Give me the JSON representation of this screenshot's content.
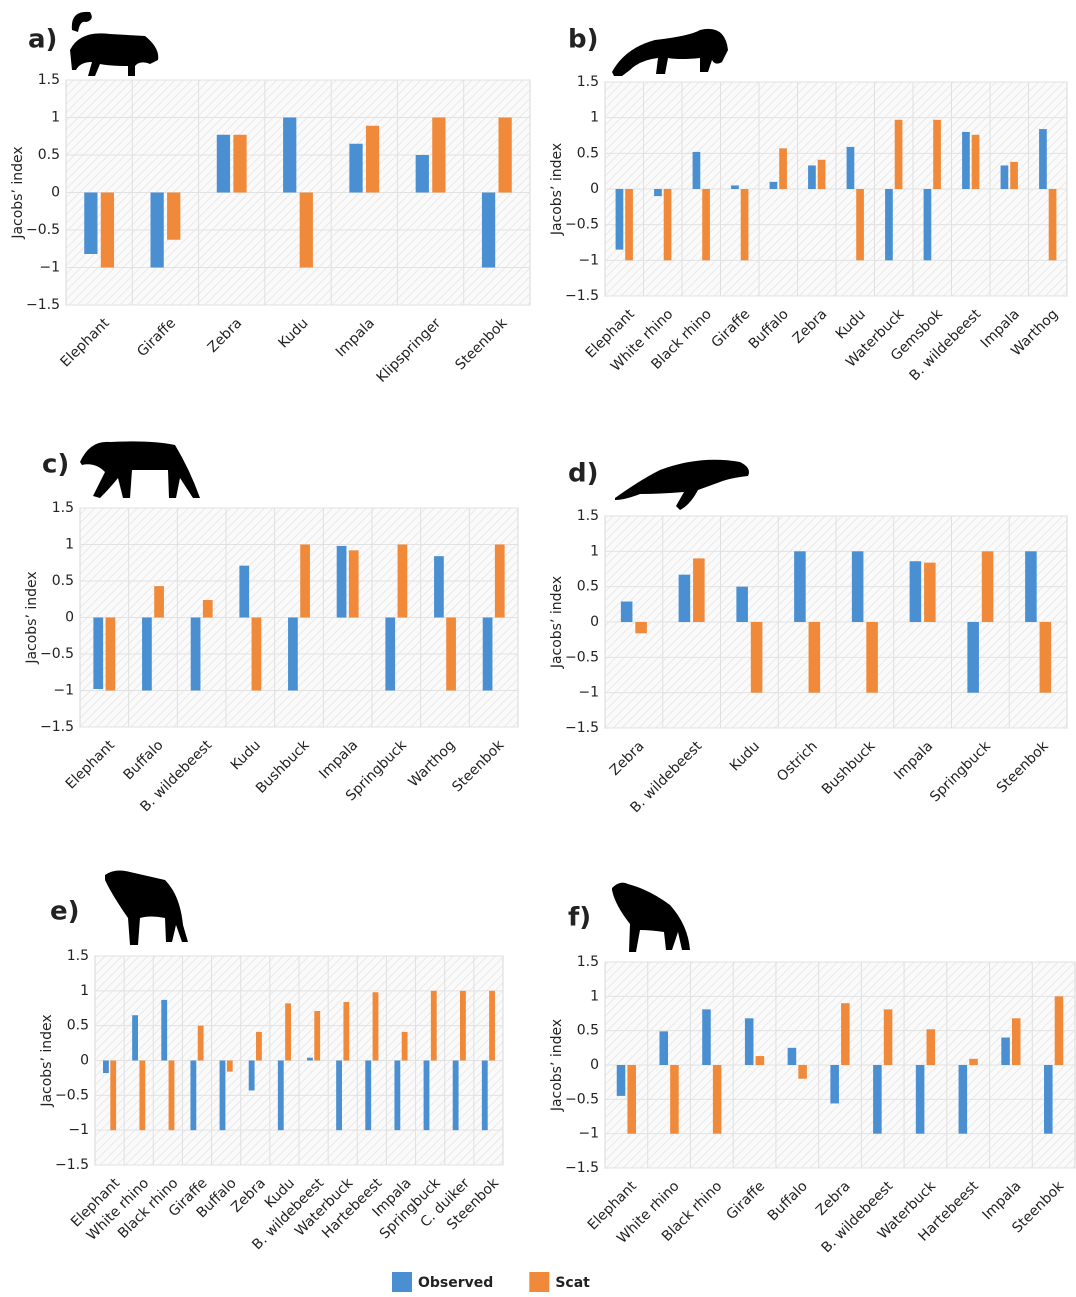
{
  "chart_data": [
    {
      "type": "bar",
      "title": "a)",
      "y_label": "Jacobs’ index",
      "categories": [
        "Elephant",
        "Giraffe",
        "Zebra",
        "Kudu",
        "Impala",
        "Klipspringer",
        "Steenbok"
      ],
      "series": [
        {
          "name": "Observed",
          "color": "#4a8fd2",
          "values": [
            -0.82,
            -1,
            0.77,
            1,
            0.65,
            0.5,
            -1
          ]
        },
        {
          "name": "Scat",
          "color": "#f08a3a",
          "values": [
            -1,
            -0.63,
            0.77,
            -1,
            0.89,
            1,
            1
          ]
        }
      ],
      "ylim": [
        -1.5,
        1.5
      ],
      "yticks": [
        1.5,
        1,
        0.5,
        0,
        {
          "value": -0.5,
          "label": "−0.5"
        },
        {
          "value": -1,
          "label": "−1"
        },
        {
          "value": -1.5,
          "label": "−1.5"
        }
      ],
      "grid": true
    },
    {
      "type": "bar",
      "title": "b)",
      "y_label": "Jacobs’ index",
      "categories": [
        "Elephant",
        "White rhino",
        "Black rhino",
        "Giraffe",
        "Buffalo",
        "Zebra",
        "Kudu",
        "Waterbuck",
        "Gemsbok",
        "B. wildebeest",
        "Impala",
        "Warthog"
      ],
      "series": [
        {
          "name": "Observed",
          "color": "#4a8fd2",
          "values": [
            -0.85,
            -0.1,
            0.52,
            0.05,
            0.1,
            0.33,
            0.59,
            -1,
            -1,
            0.8,
            0.33,
            0.84
          ]
        },
        {
          "name": "Scat",
          "color": "#f08a3a",
          "values": [
            -1,
            -1,
            -1,
            -1,
            0.57,
            0.41,
            -1,
            0.97,
            0.97,
            0.76,
            0.38,
            -1
          ]
        }
      ],
      "ylim": [
        -1.5,
        1.5
      ],
      "yticks": [
        1.5,
        1,
        0.5,
        0,
        {
          "value": -0.5,
          "label": "−0.5"
        },
        {
          "value": -1,
          "label": "−1"
        },
        {
          "value": -1.5,
          "label": "−1.5"
        }
      ],
      "grid": true
    },
    {
      "type": "bar",
      "title": "c)",
      "y_label": "Jacobs’ index",
      "categories": [
        "Elephant",
        "Buffalo",
        "B. wildebeest",
        "Kudu",
        "Bushbuck",
        "Impala",
        "Springbuck",
        "Warthog",
        "Steenbok"
      ],
      "series": [
        {
          "name": "Observed",
          "color": "#4a8fd2",
          "values": [
            -0.98,
            -1,
            -1,
            0.71,
            -1,
            0.98,
            -1,
            0.84,
            -1
          ]
        },
        {
          "name": "Scat",
          "color": "#f08a3a",
          "values": [
            -1,
            0.43,
            0.24,
            -1,
            1,
            0.92,
            1,
            -1,
            1
          ]
        }
      ],
      "ylim": [
        -1.5,
        1.5
      ],
      "yticks": [
        1.5,
        1,
        0.5,
        0,
        {
          "value": -0.5,
          "label": "−0.5"
        },
        {
          "value": -1,
          "label": "−1"
        },
        {
          "value": -1.5,
          "label": "−1.5"
        }
      ],
      "grid": true
    },
    {
      "type": "bar",
      "title": "d)",
      "y_label": "Jacobs’ index",
      "categories": [
        "Zebra",
        "B. wildebeest",
        "Kudu",
        "Ostrich",
        "Bushbuck",
        "Impala",
        "Springbuck",
        "Steenbok"
      ],
      "series": [
        {
          "name": "Observed",
          "color": "#4a8fd2",
          "values": [
            0.29,
            0.67,
            0.5,
            1,
            1,
            0.86,
            -1,
            1
          ]
        },
        {
          "name": "Scat",
          "color": "#f08a3a",
          "values": [
            -0.16,
            0.9,
            -1,
            -1,
            -1,
            0.84,
            1,
            -1
          ]
        }
      ],
      "ylim": [
        -1.5,
        1.5
      ],
      "yticks": [
        1.5,
        1,
        0.5,
        0,
        {
          "value": -0.5,
          "label": "−0.5"
        },
        {
          "value": -1,
          "label": "−1"
        },
        {
          "value": -1.5,
          "label": "−1.5"
        }
      ],
      "grid": true
    },
    {
      "type": "bar",
      "title": "e)",
      "y_label": "Jacobs’ index",
      "categories": [
        "Elephant",
        "White rhino",
        "Black rhino",
        "Giraffe",
        "Buffalo",
        "Zebra",
        "Kudu",
        "B. wildebeest",
        "Waterbuck",
        "Hartebeest",
        "Impala",
        "Springbuck",
        "C. duiker",
        "Steenbok"
      ],
      "series": [
        {
          "name": "Observed",
          "color": "#4a8fd2",
          "values": [
            -0.18,
            0.65,
            0.87,
            -1,
            -1,
            -0.43,
            -1,
            0.04,
            -1,
            -1,
            -1,
            -1,
            -1,
            -1
          ]
        },
        {
          "name": "Scat",
          "color": "#f08a3a",
          "values": [
            -1,
            -1,
            -1,
            0.5,
            -0.16,
            0.41,
            0.82,
            0.71,
            0.84,
            0.98,
            0.41,
            1,
            1,
            1
          ]
        }
      ],
      "ylim": [
        -1.5,
        1.5
      ],
      "yticks": [
        1.5,
        1,
        0.5,
        0,
        {
          "value": -0.5,
          "label": "−0.5"
        },
        {
          "value": -1,
          "label": "−1"
        },
        {
          "value": -1.5,
          "label": "−1.5"
        }
      ],
      "grid": true
    },
    {
      "type": "bar",
      "title": "f)",
      "y_label": "Jacobs’ index",
      "categories": [
        "Elephant",
        "White rhino",
        "Black rhino",
        "Giraffe",
        "Buffalo",
        "Zebra",
        "B. wildebeest",
        "Waterbuck",
        "Hartebeest",
        "Impala",
        "Steenbok"
      ],
      "series": [
        {
          "name": "Observed",
          "color": "#4a8fd2",
          "values": [
            -0.45,
            0.49,
            0.81,
            0.68,
            0.25,
            -0.56,
            -1,
            -1,
            -1,
            0.4,
            -1
          ]
        },
        {
          "name": "Scat",
          "color": "#f08a3a",
          "values": [
            -1,
            -1,
            -1,
            0.13,
            -0.2,
            0.9,
            0.81,
            0.52,
            0.09,
            0.68,
            1
          ]
        }
      ],
      "ylim": [
        -1.5,
        1.5
      ],
      "yticks": [
        1.5,
        1,
        0.5,
        0,
        {
          "value": -0.5,
          "label": "−0.5"
        },
        {
          "value": -1,
          "label": "−1"
        },
        {
          "value": -1.5,
          "label": "−1.5"
        }
      ],
      "grid": true
    }
  ]
}
